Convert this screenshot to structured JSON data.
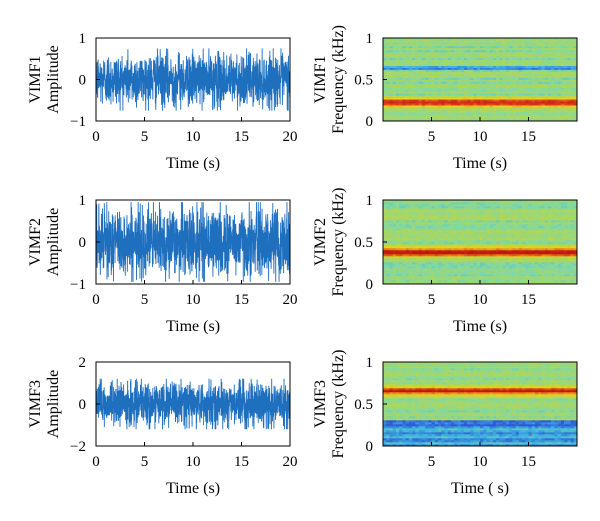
{
  "colors": {
    "signal": "#1f6fbf",
    "spectrogram_palette": [
      "#2a58d8",
      "#3fb4e0",
      "#7fd8a8",
      "#b6d64a",
      "#e8d21f",
      "#f08a18",
      "#d83318",
      "#b8180f"
    ]
  },
  "chart_data": [
    {
      "type": "line",
      "ylabel_line1": "VIMF1",
      "ylabel_line2": "Amplitude",
      "xlabel": "Time (s)",
      "xlim": [
        0,
        20
      ],
      "ylim": [
        -1,
        1
      ],
      "xticks": [
        "0",
        "5",
        "10",
        "15",
        "20"
      ],
      "yticks": [
        "-1",
        "0",
        "1"
      ],
      "signal_amplitude_range": [
        -0.75,
        0.75
      ]
    },
    {
      "type": "heatmap",
      "ylabel_line1": "VIMF1",
      "ylabel_line2": "Frequency (kHz)",
      "xlabel": "Time (s)",
      "xlim": [
        0,
        20
      ],
      "ylim": [
        0,
        1
      ],
      "xticks": [
        "5",
        "10",
        "15"
      ],
      "yticks": [
        "0",
        "0.5",
        "1"
      ],
      "dominant_band_khz": 0.22
    },
    {
      "type": "line",
      "ylabel_line1": "VIMF2",
      "ylabel_line2": "Amplitude",
      "xlabel": "Time (s)",
      "xlim": [
        0,
        20
      ],
      "ylim": [
        -1,
        1
      ],
      "xticks": [
        "0",
        "5",
        "10",
        "15",
        "20"
      ],
      "yticks": [
        "-1",
        "0",
        "1"
      ],
      "signal_amplitude_range": [
        -0.95,
        0.95
      ]
    },
    {
      "type": "heatmap",
      "ylabel_line1": "VIMF2",
      "ylabel_line2": "Frequency (kHz)",
      "xlabel": "Time (s)",
      "xlim": [
        0,
        20
      ],
      "ylim": [
        0,
        1
      ],
      "xticks": [
        "5",
        "10",
        "15"
      ],
      "yticks": [
        "0",
        "0.5",
        "1"
      ],
      "dominant_band_khz": 0.38
    },
    {
      "type": "line",
      "ylabel_line1": "VIMF3",
      "ylabel_line2": "Amplitude",
      "xlabel": "Time (s)",
      "xlim": [
        0,
        20
      ],
      "ylim": [
        -2,
        2
      ],
      "xticks": [
        "0",
        "5",
        "10",
        "15",
        "20"
      ],
      "yticks": [
        "-2",
        "0",
        "2"
      ],
      "signal_amplitude_range": [
        -1.2,
        1.2
      ]
    },
    {
      "type": "heatmap",
      "ylabel_line1": "VIMF3",
      "ylabel_line2": "Frequency (kHz)",
      "xlabel": "Time ( s)",
      "xlim": [
        0,
        20
      ],
      "ylim": [
        0,
        1
      ],
      "xticks": [
        "5",
        "10",
        "15"
      ],
      "yticks": [
        "0",
        "0.5",
        "1"
      ],
      "dominant_band_khz": 0.66
    }
  ]
}
